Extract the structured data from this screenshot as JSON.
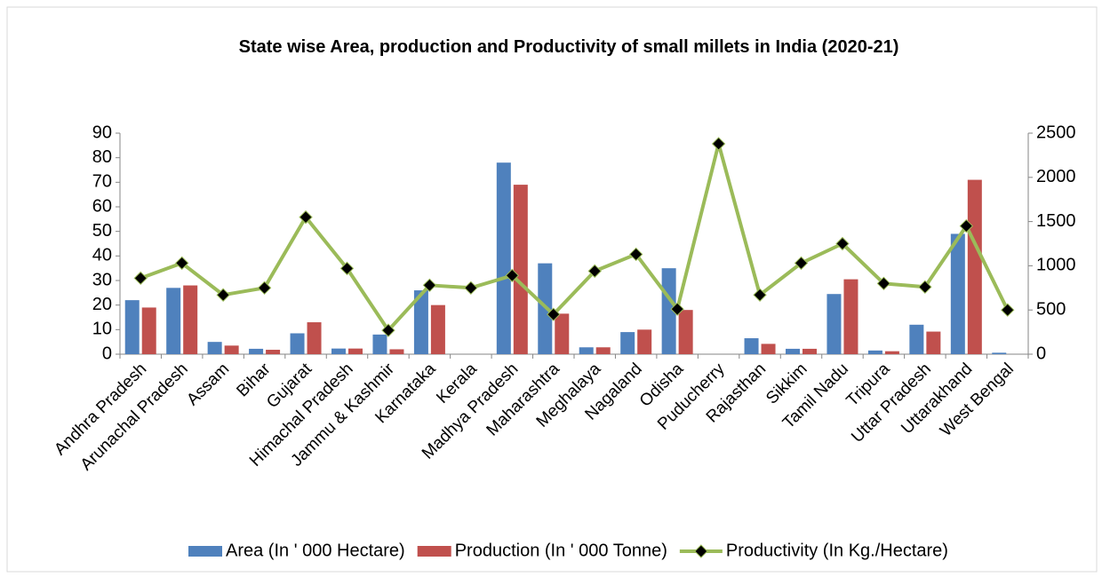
{
  "chart_data": {
    "type": "bar_line",
    "title": "State wise Area, production and Productivity of small millets in India (2020-21)",
    "categories": [
      "Andhra Pradesh",
      "Arunachal Pradesh",
      "Assam",
      "Bihar",
      "Gujarat",
      "Himachal Pradesh",
      "Jammu & Kashmir",
      "Karnataka",
      "Kerala",
      "Madhya Pradesh",
      "Maharashtra",
      "Meghalaya",
      "Nagaland",
      "Odisha",
      "Puducherry",
      "Rajasthan",
      "Sikkim",
      "Tamil Nadu",
      "Tripura",
      "Uttar Pradesh",
      "Uttarakhand",
      "West Bengal"
    ],
    "series": [
      {
        "name": "Area (In ' 000 Hectare)",
        "color": "#4f81bd",
        "type": "bar",
        "values": [
          22,
          27,
          5,
          2.2,
          8.5,
          2.3,
          8,
          26,
          0,
          78,
          37,
          2.8,
          9,
          35,
          0,
          6.5,
          2.2,
          24.5,
          1.5,
          12,
          49,
          0.6
        ]
      },
      {
        "name": "Production (In ' 000 Tonne)",
        "color": "#c0504d",
        "type": "bar",
        "values": [
          19,
          28,
          3.5,
          1.8,
          13,
          2.3,
          2,
          20,
          0,
          69,
          16.5,
          2.8,
          10,
          18,
          0,
          4.2,
          2.2,
          30.5,
          1.2,
          9.2,
          71,
          0
        ]
      },
      {
        "name": "Productivity (In Kg./Hectare)",
        "color": "#9bbb59",
        "type": "line",
        "axis": "y2",
        "values": [
          860,
          1030,
          670,
          750,
          1550,
          970,
          270,
          780,
          750,
          890,
          450,
          940,
          1130,
          510,
          2380,
          670,
          1030,
          1250,
          800,
          760,
          1450,
          500
        ]
      }
    ],
    "ylim": [
      0,
      90
    ],
    "yticks": [
      0,
      10,
      20,
      30,
      40,
      50,
      60,
      70,
      80,
      90
    ],
    "y2lim": [
      0,
      2500
    ],
    "y2ticks": [
      0,
      500,
      1000,
      1500,
      2000,
      2500
    ],
    "grid": false,
    "legend": "bottom"
  }
}
